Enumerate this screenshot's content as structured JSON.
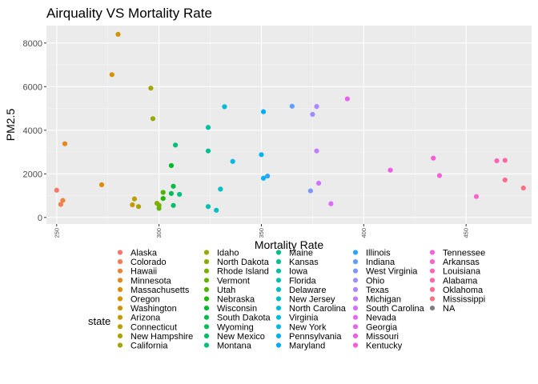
{
  "chart_data": {
    "type": "scatter",
    "title": "Airquality VS Mortality Rate",
    "xlabel": "Mortality Rate",
    "ylabel": "PM2.5",
    "xlim": [
      245,
      482
    ],
    "ylim": [
      -300,
      8800
    ],
    "x_ticks": [
      250,
      300,
      350,
      400,
      450
    ],
    "x_tick_labels": [
      "250",
      "300",
      "350",
      "400",
      "450"
    ],
    "y_ticks": [
      0,
      2000,
      4000,
      6000,
      8000
    ],
    "y_tick_labels": [
      "0",
      "2000",
      "4000",
      "6000",
      "8000"
    ],
    "grid": true,
    "legend_position": "bottom",
    "legend_title": "state",
    "series": [
      {
        "name": "Alaska",
        "color": "#F8766D",
        "points": [
          [
            250,
            1250
          ]
        ]
      },
      {
        "name": "Colorado",
        "color": "#F27D52",
        "points": [
          [
            252,
            600
          ]
        ]
      },
      {
        "name": "Hawaii",
        "color": "#EC8239",
        "points": [
          [
            253,
            780
          ]
        ]
      },
      {
        "name": "Minnesota",
        "color": "#E7861B",
        "points": [
          [
            254,
            3380
          ]
        ]
      },
      {
        "name": "Massachusetts",
        "color": "#DF8C00",
        "points": [
          [
            272,
            1500
          ]
        ]
      },
      {
        "name": "Oregon",
        "color": "#D59100",
        "points": [
          [
            277,
            6550
          ]
        ]
      },
      {
        "name": "Washington",
        "color": "#CD9600",
        "points": [
          [
            280,
            8400
          ]
        ]
      },
      {
        "name": "Arizona",
        "color": "#C49A00",
        "points": [
          [
            287,
            580
          ]
        ]
      },
      {
        "name": "Connecticut",
        "color": "#BA9E00",
        "points": [
          [
            288,
            850
          ]
        ]
      },
      {
        "name": "New Hampshire",
        "color": "#AEA200",
        "points": [
          [
            290,
            500
          ]
        ]
      },
      {
        "name": "California",
        "color": "#A3A500",
        "points": [
          [
            296,
            5930
          ]
        ]
      },
      {
        "name": "Idaho",
        "color": "#96A900",
        "points": [
          [
            297,
            4530
          ]
        ]
      },
      {
        "name": "North Dakota",
        "color": "#88AC00",
        "points": [
          [
            299,
            650
          ]
        ]
      },
      {
        "name": "Rhode Island",
        "color": "#79AF00",
        "points": [
          [
            300,
            560
          ]
        ]
      },
      {
        "name": "Vermont",
        "color": "#65B200",
        "points": [
          [
            300,
            420
          ]
        ]
      },
      {
        "name": "Utah",
        "color": "#4BB500",
        "points": [
          [
            302,
            1150
          ]
        ]
      },
      {
        "name": "Nebraska",
        "color": "#1FB700",
        "points": [
          [
            302,
            870
          ]
        ]
      },
      {
        "name": "Wisconsin",
        "color": "#00B92A",
        "points": [
          [
            306,
            2380
          ]
        ]
      },
      {
        "name": "South Dakota",
        "color": "#00BB44",
        "points": [
          [
            307,
            1430
          ]
        ]
      },
      {
        "name": "Wyoming",
        "color": "#00BC56",
        "points": [
          [
            306,
            1100
          ]
        ]
      },
      {
        "name": "New Mexico",
        "color": "#00BE67",
        "points": [
          [
            307,
            550
          ]
        ]
      },
      {
        "name": "Montana",
        "color": "#00BF78",
        "points": [
          [
            308,
            3320
          ]
        ]
      },
      {
        "name": "Maine",
        "color": "#00BF86",
        "points": [
          [
            310,
            1060
          ]
        ]
      },
      {
        "name": "Kansas",
        "color": "#00C094",
        "points": [
          [
            324,
            3050
          ]
        ]
      },
      {
        "name": "Iowa",
        "color": "#00C0A2",
        "points": [
          [
            324,
            4130
          ]
        ]
      },
      {
        "name": "Florida",
        "color": "#00C0AF",
        "points": [
          [
            324,
            500
          ]
        ]
      },
      {
        "name": "Delaware",
        "color": "#00BFBC",
        "points": [
          [
            328,
            330
          ]
        ]
      },
      {
        "name": "New Jersey",
        "color": "#00BEC8",
        "points": [
          [
            330,
            1300
          ]
        ]
      },
      {
        "name": "North Carolina",
        "color": "#00BCD5",
        "points": [
          [
            332,
            5080
          ]
        ]
      },
      {
        "name": "Virginia",
        "color": "#00B9E1",
        "points": [
          [
            336,
            2570
          ]
        ]
      },
      {
        "name": "New York",
        "color": "#00B6EB",
        "points": [
          [
            350,
            2880
          ]
        ]
      },
      {
        "name": "Pennsylvania",
        "color": "#00B1F5",
        "points": [
          [
            351,
            1800
          ]
        ]
      },
      {
        "name": "Maryland",
        "color": "#00ACFC",
        "points": [
          [
            351,
            4850
          ]
        ]
      },
      {
        "name": "Illinois",
        "color": "#2BA6FF",
        "points": [
          [
            353,
            1900
          ]
        ]
      },
      {
        "name": "Indiana",
        "color": "#619CFF",
        "points": [
          [
            365,
            5100
          ]
        ]
      },
      {
        "name": "West Virginia",
        "color": "#7F96FF",
        "points": [
          [
            374,
            1220
          ]
        ]
      },
      {
        "name": "Ohio",
        "color": "#9A8FFF",
        "points": [
          [
            375,
            4730
          ]
        ]
      },
      {
        "name": "Texas",
        "color": "#B085FF",
        "points": [
          [
            377,
            5090
          ]
        ]
      },
      {
        "name": "Michigan",
        "color": "#C17CFF",
        "points": [
          [
            377,
            3050
          ]
        ]
      },
      {
        "name": "South Carolina",
        "color": "#D171FF",
        "points": [
          [
            378,
            1570
          ]
        ]
      },
      {
        "name": "Nevada",
        "color": "#DF6BF7",
        "points": [
          [
            384,
            630
          ]
        ]
      },
      {
        "name": "Georgia",
        "color": "#E763EF",
        "points": [
          [
            392,
            5440
          ]
        ]
      },
      {
        "name": "Missouri",
        "color": "#F05CE5",
        "points": [
          [
            413,
            2170
          ]
        ]
      },
      {
        "name": "Kentucky",
        "color": "#F65ED9",
        "points": [
          [
            434,
            2720
          ]
        ]
      },
      {
        "name": "Tennessee",
        "color": "#FB61D7",
        "points": [
          [
            437,
            1920
          ]
        ]
      },
      {
        "name": "Arkansas",
        "color": "#FF62C8",
        "points": [
          [
            455,
            960
          ]
        ]
      },
      {
        "name": "Louisiana",
        "color": "#FF64B8",
        "points": [
          [
            465,
            2600
          ]
        ]
      },
      {
        "name": "Alabama",
        "color": "#FF67A4",
        "points": [
          [
            469,
            2620
          ]
        ]
      },
      {
        "name": "Oklahoma",
        "color": "#FF6A90",
        "points": [
          [
            469,
            1720
          ]
        ]
      },
      {
        "name": "Mississippi",
        "color": "#FC717F",
        "points": [
          [
            478,
            1350
          ]
        ]
      },
      {
        "name": "NA",
        "color": "#7F7F7F",
        "points": []
      }
    ]
  }
}
